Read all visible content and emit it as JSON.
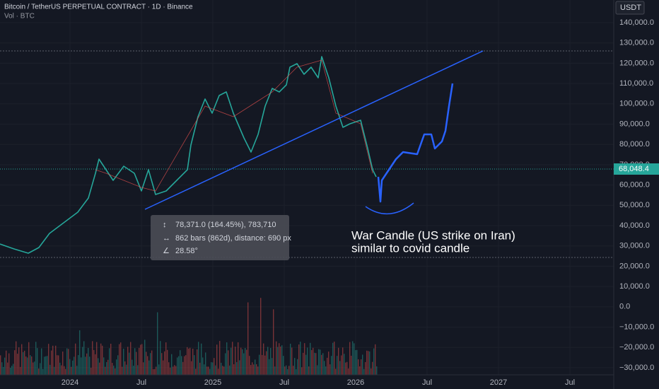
{
  "header": {
    "title": "Bitcoin / TetherUS PERPETUAL CONTRACT · 1D · Binance",
    "indicator": "Vol · BTC",
    "currency": "USDT"
  },
  "price_axis": {
    "labels": [
      "140,000.0",
      "130,000.0",
      "120,000.0",
      "110,000.0",
      "100,000.0",
      "90,000.0",
      "80,000.0",
      "70,000.0",
      "60,000.0",
      "50,000.0",
      "40,000.0",
      "30,000.0",
      "20,000.0",
      "10,000.0",
      "0.0",
      "−10,000.0",
      "−20,000.0",
      "−30,000.0"
    ],
    "last_price": "68,048.4"
  },
  "time_axis": {
    "labels": [
      "2024",
      "Jul",
      "2025",
      "Jul",
      "2026",
      "Jul",
      "2027",
      "Jul"
    ]
  },
  "measure": {
    "price_range": "78,371.0 (164.45%), 783,710",
    "bars": "862 bars (862d), distance: 690 px",
    "angle": "28.58°"
  },
  "annotation": {
    "lines": [
      "War Candle (US strike on Iran)",
      "similar to covid candle"
    ]
  }
}
